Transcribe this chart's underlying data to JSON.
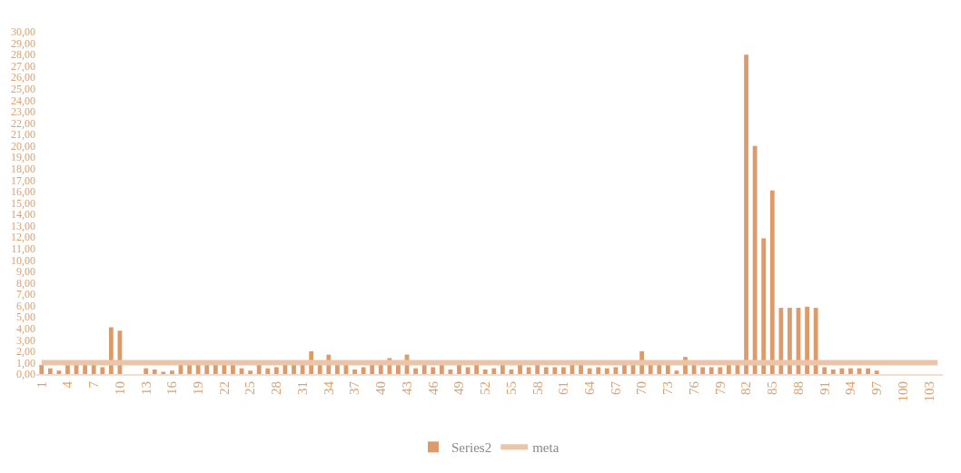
{
  "chart_data": {
    "type": "bar",
    "categories": [
      "1",
      null,
      null,
      "4",
      null,
      null,
      "7",
      null,
      null,
      "10",
      null,
      null,
      "13",
      null,
      null,
      "16",
      null,
      null,
      "19",
      null,
      null,
      "22",
      null,
      null,
      "25",
      null,
      null,
      "28",
      null,
      null,
      "31",
      null,
      null,
      "34",
      null,
      null,
      "37",
      null,
      null,
      "40",
      null,
      null,
      "43",
      null,
      null,
      "46",
      null,
      null,
      "49",
      null,
      null,
      "52",
      null,
      null,
      "55",
      null,
      null,
      "58",
      null,
      null,
      "61",
      null,
      null,
      "64",
      null,
      null,
      "67",
      null,
      null,
      "70",
      null,
      null,
      "73",
      null,
      null,
      "76",
      null,
      null,
      "79",
      null,
      null,
      "82",
      null,
      null,
      "85",
      null,
      null,
      "88",
      null,
      null,
      "91",
      null,
      null,
      "94",
      null,
      null,
      "97",
      null,
      null,
      "100",
      null,
      null,
      "103",
      null
    ],
    "series": [
      {
        "name": "Series2",
        "color": "#dd9a6b",
        "values": [
          0.8,
          0.5,
          0.3,
          0.8,
          0.8,
          0.8,
          0.8,
          0.6,
          4.1,
          3.8,
          null,
          null,
          0.5,
          0.4,
          0.2,
          0.3,
          0.8,
          0.8,
          0.8,
          0.8,
          0.8,
          0.8,
          0.8,
          0.5,
          0.3,
          0.8,
          0.5,
          0.6,
          0.8,
          0.8,
          0.8,
          2.0,
          0.8,
          1.7,
          0.8,
          0.8,
          0.4,
          0.6,
          0.8,
          0.8,
          1.4,
          0.8,
          1.7,
          0.5,
          0.8,
          0.6,
          0.8,
          0.4,
          0.8,
          0.6,
          0.8,
          0.4,
          0.5,
          0.8,
          0.4,
          0.8,
          0.6,
          0.8,
          0.6,
          0.6,
          0.6,
          0.8,
          0.8,
          0.5,
          0.6,
          0.5,
          0.6,
          0.8,
          0.8,
          2.0,
          0.8,
          0.8,
          0.8,
          0.3,
          1.5,
          0.8,
          0.6,
          0.6,
          0.6,
          0.8,
          0.8,
          28.0,
          20.0,
          11.9,
          16.1,
          5.8,
          5.8,
          5.8,
          5.9,
          5.8,
          0.6,
          0.4,
          0.5,
          0.5,
          0.5,
          0.5,
          0.3,
          null,
          null,
          null,
          null,
          null,
          null,
          null
        ]
      },
      {
        "name": "meta",
        "color": "#ecc5a8",
        "type": "line",
        "values": [
          1,
          1,
          1,
          1,
          1,
          1,
          1,
          1,
          1,
          1,
          1,
          1,
          1,
          1,
          1,
          1,
          1,
          1,
          1,
          1,
          1,
          1,
          1,
          1,
          1,
          1,
          1,
          1,
          1,
          1,
          1,
          1,
          1,
          1,
          1,
          1,
          1,
          1,
          1,
          1,
          1,
          1,
          1,
          1,
          1,
          1,
          1,
          1,
          1,
          1,
          1,
          1,
          1,
          1,
          1,
          1,
          1,
          1,
          1,
          1,
          1,
          1,
          1,
          1,
          1,
          1,
          1,
          1,
          1,
          1,
          1,
          1,
          1,
          1,
          1,
          1,
          1,
          1,
          1,
          1,
          1,
          1,
          1,
          1,
          1,
          1,
          1,
          1,
          1,
          1,
          1,
          1,
          1,
          1,
          1,
          1,
          1,
          1,
          1,
          1,
          1,
          1,
          1,
          1
        ]
      }
    ],
    "ylim": [
      0,
      30
    ],
    "yticks": [
      {
        "value": 0,
        "label": "0,00"
      },
      {
        "value": 1,
        "label": "1,00"
      },
      {
        "value": 2,
        "label": "2,00"
      },
      {
        "value": 3,
        "label": "3,00"
      },
      {
        "value": 4,
        "label": "4,00"
      },
      {
        "value": 5,
        "label": "5,00"
      },
      {
        "value": 6,
        "label": "6,00"
      },
      {
        "value": 7,
        "label": "7,00"
      },
      {
        "value": 8,
        "label": "8,00"
      },
      {
        "value": 9,
        "label": "9,00"
      },
      {
        "value": 10,
        "label": "10,00"
      },
      {
        "value": 11,
        "label": "11,00"
      },
      {
        "value": 12,
        "label": "12,00"
      },
      {
        "value": 13,
        "label": "13,00"
      },
      {
        "value": 14,
        "label": "14,00"
      },
      {
        "value": 15,
        "label": "15,00"
      },
      {
        "value": 16,
        "label": "16,00"
      },
      {
        "value": 17,
        "label": "17,00"
      },
      {
        "value": 18,
        "label": "18,00"
      },
      {
        "value": 19,
        "label": "19,00"
      },
      {
        "value": 20,
        "label": "20,00"
      },
      {
        "value": 21,
        "label": "21,00"
      },
      {
        "value": 22,
        "label": "22,00"
      },
      {
        "value": 23,
        "label": "23,00"
      },
      {
        "value": 24,
        "label": "24,00"
      },
      {
        "value": 25,
        "label": "25,00"
      },
      {
        "value": 26,
        "label": "26,00"
      },
      {
        "value": 27,
        "label": "27,00"
      },
      {
        "value": 28,
        "label": "28,00"
      },
      {
        "value": 29,
        "label": "29,00"
      },
      {
        "value": 30,
        "label": "30,00"
      }
    ],
    "legend": "bottom",
    "marker": "none"
  }
}
